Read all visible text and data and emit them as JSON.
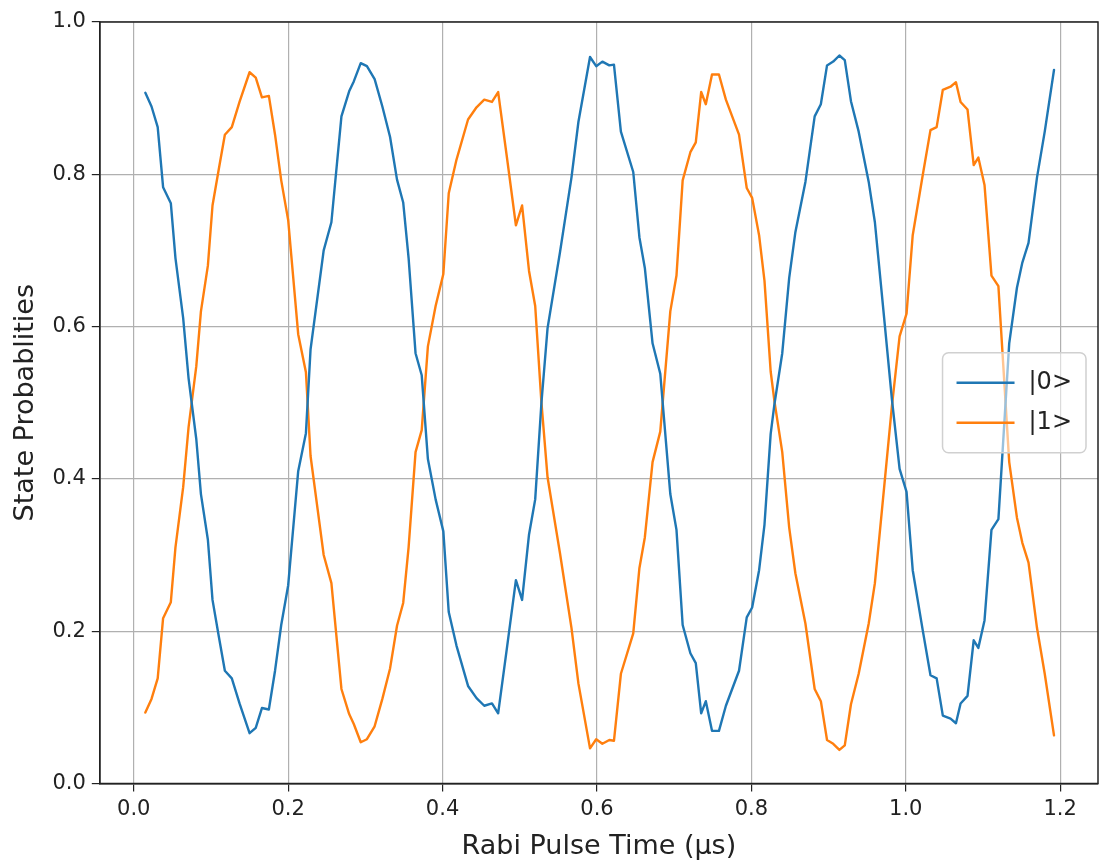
{
  "chart_data": {
    "type": "line",
    "xlabel": "Rabi Pulse Time (μs)",
    "ylabel": "State Probablities",
    "x": [
      0.015,
      0.023,
      0.031,
      0.038,
      0.048,
      0.054,
      0.064,
      0.071,
      0.081,
      0.087,
      0.096,
      0.102,
      0.11,
      0.118,
      0.127,
      0.137,
      0.15,
      0.158,
      0.166,
      0.175,
      0.183,
      0.191,
      0.2,
      0.213,
      0.223,
      0.229,
      0.246,
      0.256,
      0.269,
      0.279,
      0.285,
      0.294,
      0.302,
      0.312,
      0.322,
      0.332,
      0.341,
      0.349,
      0.356,
      0.365,
      0.373,
      0.381,
      0.391,
      0.401,
      0.408,
      0.418,
      0.433,
      0.444,
      0.454,
      0.464,
      0.472,
      0.483,
      0.495,
      0.503,
      0.512,
      0.52,
      0.528,
      0.536,
      0.552,
      0.567,
      0.576,
      0.591,
      0.599,
      0.607,
      0.616,
      0.622,
      0.631,
      0.647,
      0.655,
      0.662,
      0.672,
      0.682,
      0.695,
      0.703,
      0.711,
      0.721,
      0.728,
      0.735,
      0.741,
      0.749,
      0.758,
      0.767,
      0.784,
      0.794,
      0.801,
      0.81,
      0.817,
      0.825,
      0.83,
      0.84,
      0.849,
      0.857,
      0.87,
      0.882,
      0.89,
      0.898,
      0.906,
      0.914,
      0.921,
      0.929,
      0.939,
      0.952,
      0.96,
      0.972,
      0.982,
      0.992,
      1.001,
      1.009,
      1.022,
      1.032,
      1.04,
      1.048,
      1.058,
      1.065,
      1.071,
      1.08,
      1.088,
      1.094,
      1.102,
      1.111,
      1.12,
      1.126,
      1.134,
      1.144,
      1.151,
      1.159,
      1.17,
      1.18,
      1.192
    ],
    "series": [
      {
        "name": "|0>",
        "color": "#1f77b4",
        "values": [
          0.907,
          0.889,
          0.862,
          0.783,
          0.762,
          0.69,
          0.611,
          0.532,
          0.452,
          0.38,
          0.32,
          0.241,
          0.194,
          0.148,
          0.138,
          0.105,
          0.066,
          0.073,
          0.099,
          0.097,
          0.148,
          0.208,
          0.26,
          0.41,
          0.46,
          0.57,
          0.7,
          0.737,
          0.876,
          0.909,
          0.922,
          0.946,
          0.942,
          0.925,
          0.889,
          0.849,
          0.793,
          0.763,
          0.69,
          0.565,
          0.536,
          0.426,
          0.373,
          0.331,
          0.225,
          0.181,
          0.128,
          0.112,
          0.102,
          0.105,
          0.092,
          0.175,
          0.267,
          0.241,
          0.327,
          0.373,
          0.499,
          0.598,
          0.697,
          0.796,
          0.869,
          0.954,
          0.942,
          0.948,
          0.943,
          0.944,
          0.856,
          0.803,
          0.717,
          0.677,
          0.578,
          0.538,
          0.38,
          0.333,
          0.208,
          0.171,
          0.158,
          0.092,
          0.108,
          0.069,
          0.069,
          0.102,
          0.148,
          0.218,
          0.231,
          0.28,
          0.34,
          0.459,
          0.499,
          0.565,
          0.664,
          0.724,
          0.79,
          0.876,
          0.892,
          0.943,
          0.948,
          0.956,
          0.95,
          0.896,
          0.856,
          0.79,
          0.737,
          0.611,
          0.505,
          0.413,
          0.383,
          0.28,
          0.201,
          0.142,
          0.138,
          0.089,
          0.085,
          0.079,
          0.105,
          0.115,
          0.188,
          0.178,
          0.214,
          0.333,
          0.347,
          0.446,
          0.578,
          0.651,
          0.684,
          0.71,
          0.796,
          0.856,
          0.937
        ]
      },
      {
        "name": "|1>",
        "color": "#ff7f0e",
        "values": [
          0.093,
          0.111,
          0.138,
          0.217,
          0.238,
          0.31,
          0.389,
          0.468,
          0.548,
          0.62,
          0.68,
          0.759,
          0.806,
          0.852,
          0.862,
          0.895,
          0.934,
          0.927,
          0.901,
          0.903,
          0.852,
          0.792,
          0.74,
          0.59,
          0.54,
          0.43,
          0.3,
          0.263,
          0.124,
          0.091,
          0.078,
          0.054,
          0.058,
          0.075,
          0.111,
          0.151,
          0.207,
          0.237,
          0.31,
          0.435,
          0.464,
          0.574,
          0.627,
          0.669,
          0.775,
          0.819,
          0.872,
          0.888,
          0.898,
          0.895,
          0.908,
          0.825,
          0.733,
          0.759,
          0.673,
          0.627,
          0.501,
          0.402,
          0.303,
          0.204,
          0.131,
          0.046,
          0.058,
          0.052,
          0.057,
          0.056,
          0.144,
          0.197,
          0.283,
          0.323,
          0.422,
          0.462,
          0.62,
          0.667,
          0.792,
          0.829,
          0.842,
          0.908,
          0.892,
          0.931,
          0.931,
          0.898,
          0.852,
          0.782,
          0.769,
          0.72,
          0.66,
          0.541,
          0.501,
          0.435,
          0.336,
          0.276,
          0.21,
          0.124,
          0.108,
          0.057,
          0.052,
          0.044,
          0.05,
          0.104,
          0.144,
          0.21,
          0.263,
          0.389,
          0.495,
          0.587,
          0.617,
          0.72,
          0.799,
          0.858,
          0.862,
          0.911,
          0.915,
          0.921,
          0.895,
          0.885,
          0.812,
          0.822,
          0.786,
          0.667,
          0.653,
          0.554,
          0.422,
          0.349,
          0.316,
          0.29,
          0.204,
          0.144,
          0.063
        ]
      }
    ],
    "xlim": [
      -0.044,
      1.249
    ],
    "xticks": [
      {
        "value": 0,
        "label": "0.0"
      },
      0.2,
      0.4,
      0.6,
      0.8,
      {
        "value": 1,
        "label": "1.0"
      },
      1.2
    ],
    "ylim": [
      0,
      1
    ],
    "yticks": [
      {
        "value": 0,
        "label": "0.0"
      },
      0.2,
      0.4,
      0.6,
      0.8,
      {
        "value": 1,
        "label": "1.0"
      }
    ],
    "grid": true,
    "legend": "right",
    "marker": "none",
    "line_style": "solid"
  }
}
